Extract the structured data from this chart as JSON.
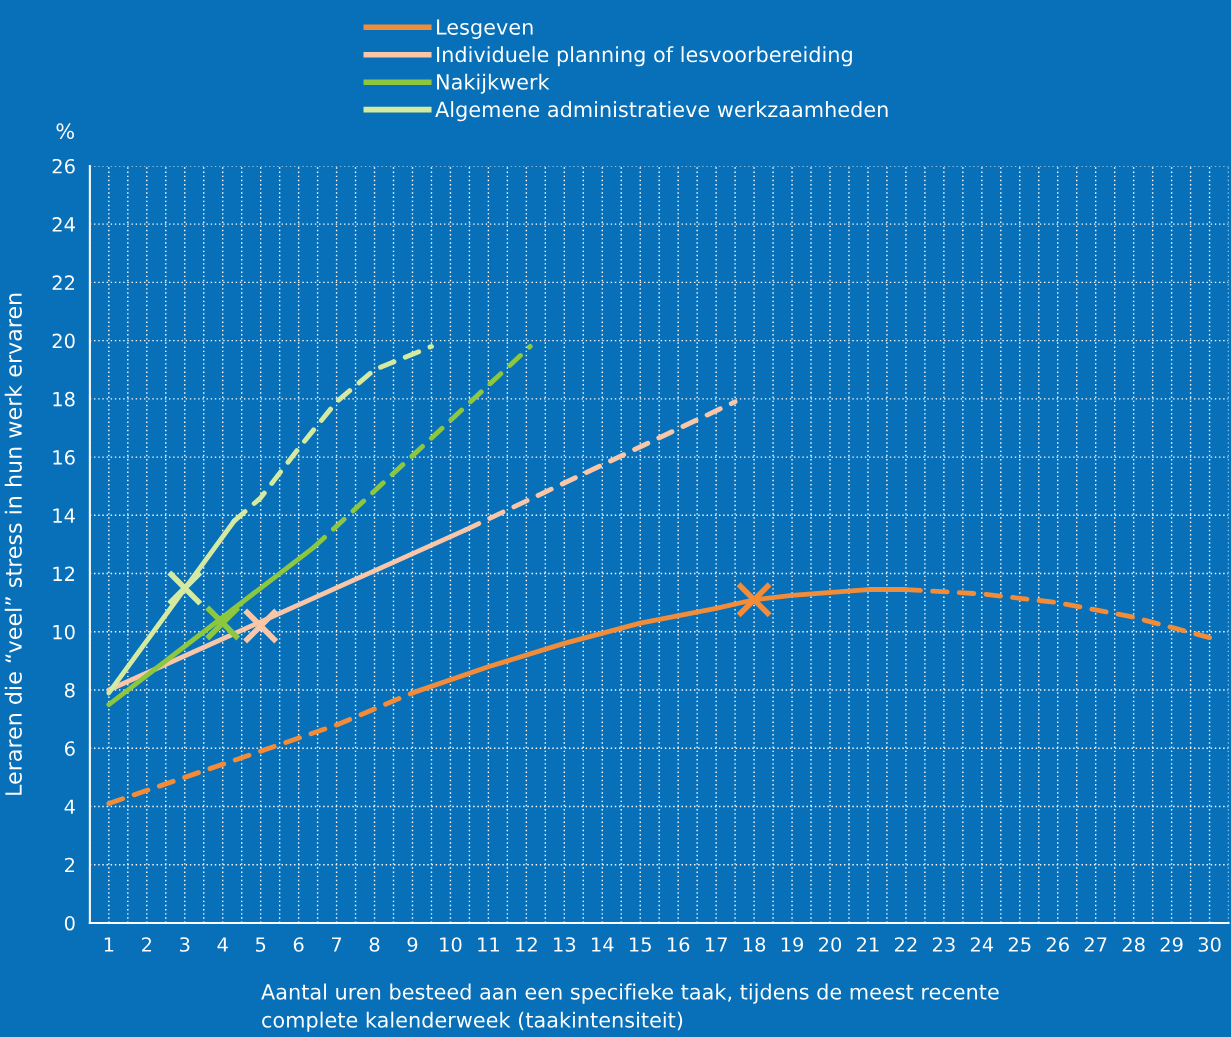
{
  "chart_data": {
    "type": "line",
    "xlabel": "Aantal uren besteed aan een specifieke taak, tijdens de meest recente\ncomplete kalenderweek (taakintensiteit)",
    "ylabel": "Leraren die “veel” stress in hun werk ervaren",
    "annotations": [
      "%"
    ],
    "xlim": [
      0.5,
      30.5
    ],
    "xticks": [
      1,
      2,
      3,
      4,
      5,
      6,
      7,
      8,
      9,
      10,
      11,
      12,
      13,
      14,
      15,
      16,
      17,
      18,
      19,
      20,
      21,
      22,
      23,
      24,
      25,
      26,
      27,
      28,
      29,
      30,
      {
        "value": 0.5,
        "label": null
      },
      {
        "value": 1.5,
        "label": null
      },
      {
        "value": 2.5,
        "label": null
      },
      {
        "value": 3.5,
        "label": null
      },
      {
        "value": 4.5,
        "label": null
      },
      {
        "value": 5.5,
        "label": null
      },
      {
        "value": 6.5,
        "label": null
      },
      {
        "value": 7.5,
        "label": null
      },
      {
        "value": 8.5,
        "label": null
      },
      {
        "value": 9.5,
        "label": null
      },
      {
        "value": 10.5,
        "label": null
      },
      {
        "value": 11.5,
        "label": null
      },
      {
        "value": 12.5,
        "label": null
      },
      {
        "value": 13.5,
        "label": null
      },
      {
        "value": 14.5,
        "label": null
      },
      {
        "value": 15.5,
        "label": null
      },
      {
        "value": 16.5,
        "label": null
      },
      {
        "value": 17.5,
        "label": null
      },
      {
        "value": 18.5,
        "label": null
      },
      {
        "value": 19.5,
        "label": null
      },
      {
        "value": 20.5,
        "label": null
      },
      {
        "value": 21.5,
        "label": null
      },
      {
        "value": 22.5,
        "label": null
      },
      {
        "value": 23.5,
        "label": null
      },
      {
        "value": 24.5,
        "label": null
      },
      {
        "value": 25.5,
        "label": null
      },
      {
        "value": 26.5,
        "label": null
      },
      {
        "value": 27.5,
        "label": null
      },
      {
        "value": 28.5,
        "label": null
      },
      {
        "value": 29.5,
        "label": null
      },
      {
        "value": 30.5,
        "label": null
      }
    ],
    "ylim": [
      0,
      26
    ],
    "yticks": [
      0,
      2,
      4,
      6,
      8,
      10,
      12,
      14,
      16,
      18,
      20,
      22,
      24,
      26
    ],
    "grid": true,
    "legend": "top",
    "series": [
      {
        "name": "Lesgeven",
        "color": "#f28c38",
        "line_style": "solid",
        "x": [
          9,
          11,
          13,
          15,
          17,
          18,
          19,
          21,
          22
        ],
        "values": [
          7.9,
          8.8,
          9.6,
          10.3,
          10.8,
          11.1,
          11.25,
          11.45,
          11.45
        ]
      },
      {
        "name": "Individuele planning of lesvoorbereiding",
        "color": "#f9c6a8",
        "line_style": "solid",
        "x": [
          1,
          10.4
        ],
        "values": [
          8.0,
          13.5
        ]
      },
      {
        "name": "Nakijkwerk",
        "color": "#8dc63f",
        "line_style": "solid",
        "x": [
          1,
          6.4
        ],
        "values": [
          7.5,
          12.9
        ]
      },
      {
        "name": "Algemene administratieve werkzaamheden",
        "color": "#d4eaa0",
        "line_style": "solid",
        "x": [
          1,
          4.3
        ],
        "values": [
          7.9,
          13.8
        ]
      },
      {
        "color": "#f28c38",
        "line_style": "dashed",
        "x": [
          1,
          3,
          5,
          7,
          9
        ],
        "values": [
          4.1,
          5.0,
          5.9,
          6.8,
          7.9
        ]
      },
      {
        "color": "#f28c38",
        "line_style": "dashed",
        "x": [
          22,
          24,
          26,
          28,
          30
        ],
        "values": [
          11.45,
          11.3,
          11.0,
          10.5,
          9.8
        ]
      },
      {
        "color": "#f9c6a8",
        "line_style": "dashed",
        "x": [
          10.4,
          17.5
        ],
        "values": [
          13.5,
          17.9
        ]
      },
      {
        "color": "#8dc63f",
        "line_style": "dashed",
        "x": [
          6.4,
          12.1
        ],
        "values": [
          12.9,
          19.8
        ]
      },
      {
        "color": "#d4eaa0",
        "line_style": "dashed",
        "x": [
          4.3,
          5,
          6,
          7,
          8,
          9.5
        ],
        "values": [
          13.8,
          14.6,
          16.3,
          17.9,
          19.0,
          19.8
        ]
      },
      {
        "type": "scatter",
        "marker": "cross",
        "color": "#f28c38",
        "x": [
          18
        ],
        "values": [
          11.1
        ]
      },
      {
        "type": "scatter",
        "marker": "cross",
        "color": "#f9c6a8",
        "x": [
          5
        ],
        "values": [
          10.2
        ]
      },
      {
        "type": "scatter",
        "marker": "cross",
        "color": "#8dc63f",
        "x": [
          4
        ],
        "values": [
          10.3
        ]
      },
      {
        "type": "scatter",
        "marker": "cross",
        "color": "#d4eaa0",
        "x": [
          3
        ],
        "values": [
          11.5
        ]
      }
    ]
  }
}
